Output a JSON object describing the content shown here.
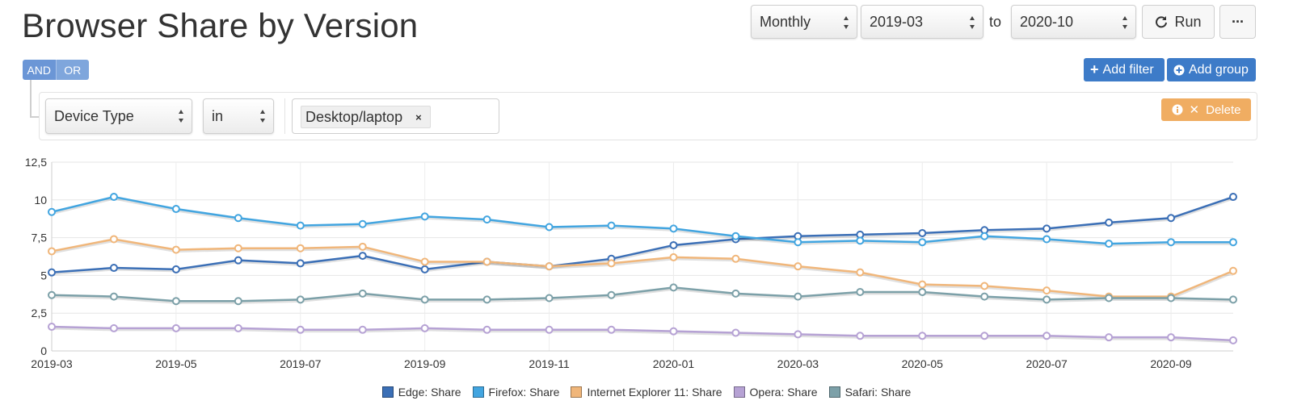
{
  "title": "Browser Share by Version",
  "controls": {
    "granularity": "Monthly",
    "from": "2019-03",
    "to_label": "to",
    "to": "2020-10",
    "run_label": "Run",
    "more_label": "···"
  },
  "filter": {
    "and_label": "AND",
    "or_label": "OR",
    "add_filter_label": "Add filter",
    "add_group_label": "Add group",
    "field": "Device Type",
    "operator": "in",
    "value_tag": "Desktop/laptop",
    "delete_label": "Delete"
  },
  "colors": {
    "edge": "#3b6fb6",
    "firefox": "#42a5e0",
    "ie11": "#f0b67a",
    "opera": "#b6a2d4",
    "safari": "#7ca0a8",
    "primary_button": "#3d7bc8",
    "delete_button": "#f0ad62"
  },
  "chart_data": {
    "type": "line",
    "title": "",
    "xlabel": "",
    "ylabel": "",
    "ylim": [
      0,
      12.5
    ],
    "yticks": [
      "0",
      "2,5",
      "5",
      "7,5",
      "10",
      "12,5"
    ],
    "grid": true,
    "legend_position": "bottom",
    "x": [
      "2019-03",
      "2019-04",
      "2019-05",
      "2019-06",
      "2019-07",
      "2019-08",
      "2019-09",
      "2019-10",
      "2019-11",
      "2019-12",
      "2020-01",
      "2020-02",
      "2020-03",
      "2020-04",
      "2020-05",
      "2020-06",
      "2020-07",
      "2020-08",
      "2020-09",
      "2020-10"
    ],
    "xtick_labels": [
      "2019-03",
      "2019-05",
      "2019-07",
      "2019-09",
      "2019-11",
      "2020-01",
      "2020-03",
      "2020-05",
      "2020-07",
      "2020-09"
    ],
    "series": [
      {
        "name": "Edge: Share",
        "color": "#3b6fb6",
        "values": [
          5.2,
          5.5,
          5.4,
          6.0,
          5.8,
          6.3,
          5.4,
          5.9,
          5.6,
          6.1,
          7.0,
          7.4,
          7.6,
          7.7,
          7.8,
          8.0,
          8.1,
          8.5,
          8.8,
          10.2
        ]
      },
      {
        "name": "Firefox: Share",
        "color": "#42a5e0",
        "values": [
          9.2,
          10.2,
          9.4,
          8.8,
          8.3,
          8.4,
          8.9,
          8.7,
          8.2,
          8.3,
          8.1,
          7.6,
          7.2,
          7.3,
          7.2,
          7.6,
          7.4,
          7.1,
          7.2,
          7.2
        ]
      },
      {
        "name": "Internet Explorer 11: Share",
        "color": "#f0b67a",
        "values": [
          6.6,
          7.4,
          6.7,
          6.8,
          6.8,
          6.9,
          5.9,
          5.9,
          5.6,
          5.8,
          6.2,
          6.1,
          5.6,
          5.2,
          4.4,
          4.3,
          4.0,
          3.6,
          3.6,
          5.3
        ]
      },
      {
        "name": "Opera: Share",
        "color": "#b6a2d4",
        "values": [
          1.6,
          1.5,
          1.5,
          1.5,
          1.4,
          1.4,
          1.5,
          1.4,
          1.4,
          1.4,
          1.3,
          1.2,
          1.1,
          1.0,
          1.0,
          1.0,
          1.0,
          0.9,
          0.9,
          0.7
        ]
      },
      {
        "name": "Safari: Share",
        "color": "#7ca0a8",
        "values": [
          3.7,
          3.6,
          3.3,
          3.3,
          3.4,
          3.8,
          3.4,
          3.4,
          3.5,
          3.7,
          4.2,
          3.8,
          3.6,
          3.9,
          3.9,
          3.6,
          3.4,
          3.5,
          3.5,
          3.4
        ]
      }
    ]
  }
}
